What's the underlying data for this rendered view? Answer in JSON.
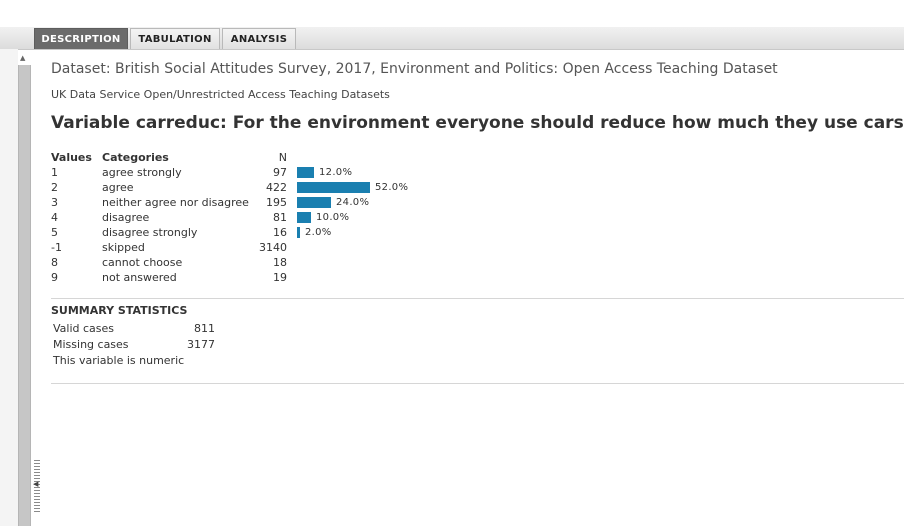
{
  "tabs": [
    {
      "label": "DESCRIPTION",
      "active": true
    },
    {
      "label": "TABULATION",
      "active": false
    },
    {
      "label": "ANALYSIS",
      "active": false
    }
  ],
  "dataset_title": "Dataset: British Social Attitudes Survey, 2017, Environment and Politics: Open Access Teaching Dataset",
  "source": "UK Data Service Open/Unrestricted Access Teaching Datasets",
  "variable_title": "Variable carreduc: For the environment everyone should reduce how much they use cars",
  "frequency_table": {
    "headers": {
      "values": "Values",
      "categories": "Categories",
      "n": "N"
    },
    "rows": [
      {
        "value": "1",
        "category": "agree strongly",
        "n": "97",
        "pct": "12.0%",
        "share": 12.0
      },
      {
        "value": "2",
        "category": "agree",
        "n": "422",
        "pct": "52.0%",
        "share": 52.0
      },
      {
        "value": "3",
        "category": "neither agree nor disagree",
        "n": "195",
        "pct": "24.0%",
        "share": 24.0
      },
      {
        "value": "4",
        "category": "disagree",
        "n": "81",
        "pct": "10.0%",
        "share": 10.0
      },
      {
        "value": "5",
        "category": "disagree strongly",
        "n": "16",
        "pct": "2.0%",
        "share": 2.0
      },
      {
        "value": "-1",
        "category": "skipped",
        "n": "3140"
      },
      {
        "value": "8",
        "category": "cannot choose",
        "n": "18"
      },
      {
        "value": "9",
        "category": "not answered",
        "n": "19"
      }
    ]
  },
  "summary": {
    "title": "SUMMARY STATISTICS",
    "valid_label": "Valid cases",
    "valid_value": "811",
    "missing_label": "Missing cases",
    "missing_value": "3177",
    "type_note": "This variable is numeric"
  },
  "colors": {
    "bar": "#1a7fb0",
    "active_tab": "#6b6b6b"
  }
}
